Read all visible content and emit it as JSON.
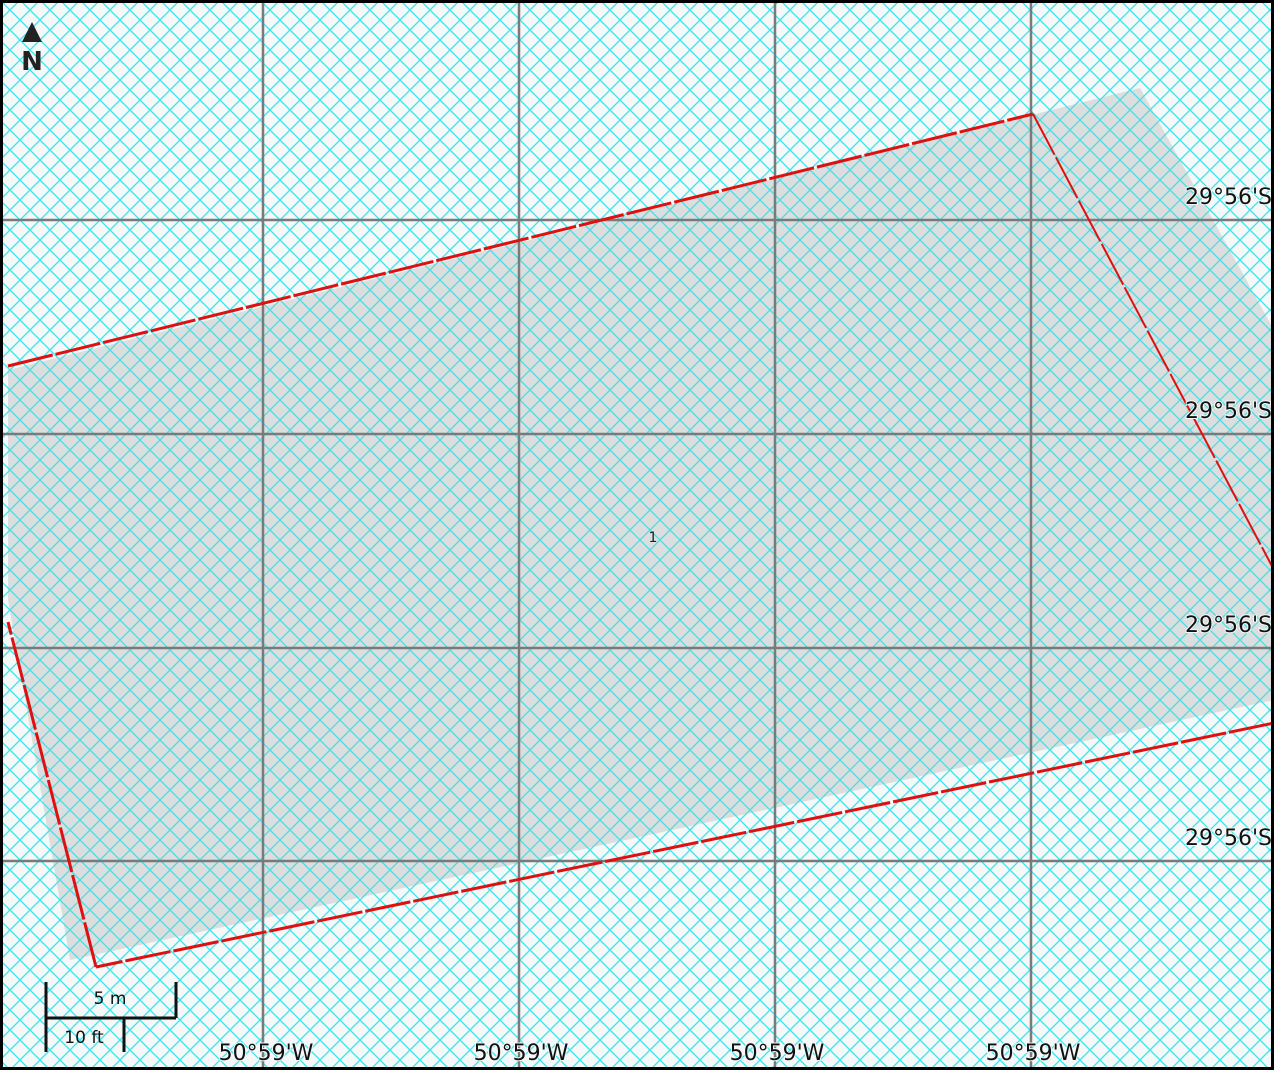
{
  "compass": {
    "label": "N"
  },
  "parcel": {
    "label": "1"
  },
  "latitude_labels": [
    "29°56'S",
    "29°56'S",
    "29°56'S",
    "29°56'S"
  ],
  "longitude_labels": [
    "50°59'W",
    "50°59'W",
    "50°59'W",
    "50°59'W"
  ],
  "scale_bar": {
    "metric_label": "5 m",
    "imperial_label": "10 ft"
  },
  "colors": {
    "background": "#f4f8f8",
    "hatch": "#36e6ec",
    "graticule": "#7a7a7a",
    "parcel_fill": "#b4b4b4",
    "boundary": "#e01010",
    "border": "#000000"
  }
}
